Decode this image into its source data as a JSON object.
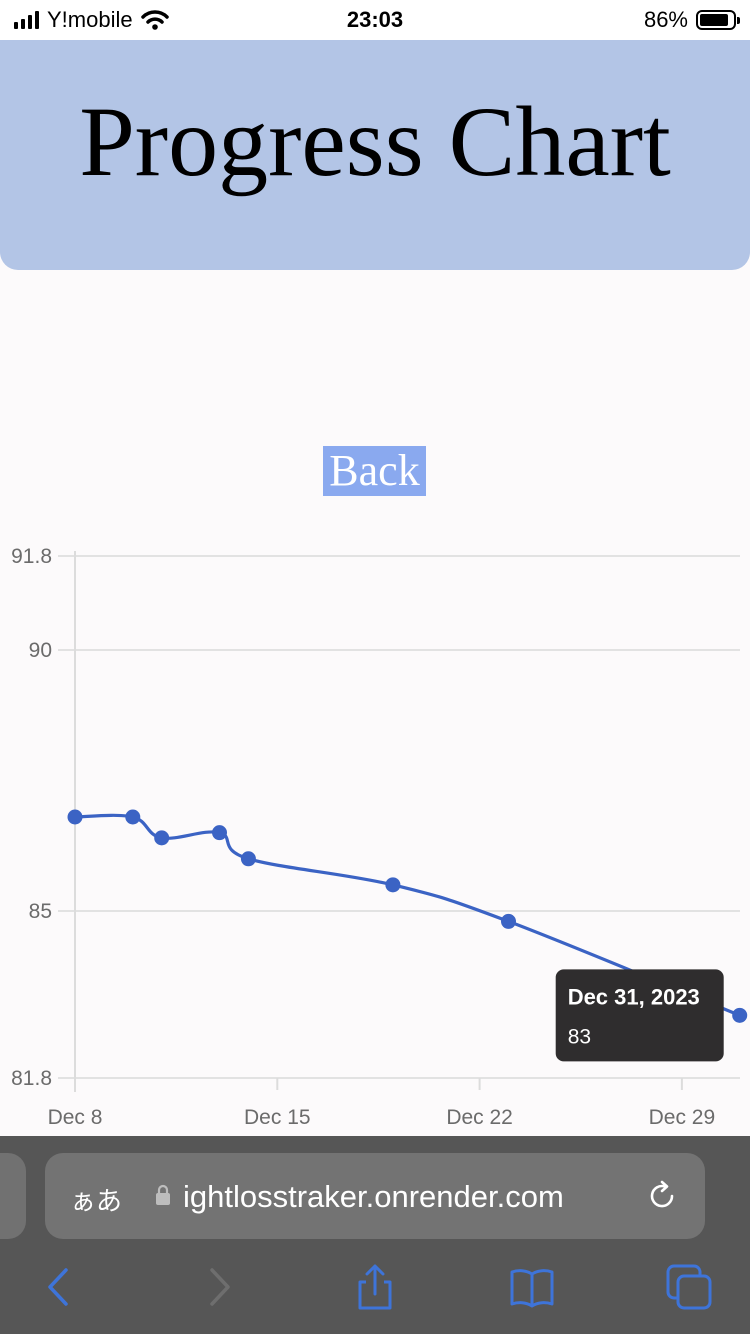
{
  "status_bar": {
    "carrier": "Y!mobile",
    "time": "23:03",
    "battery_percent": "86%",
    "battery_level": 0.86,
    "signal_icon": "signal-bars-icon",
    "wifi_icon": "wifi-icon"
  },
  "header": {
    "title": "Progress Chart"
  },
  "nav": {
    "back_label": "Back"
  },
  "chart_data": {
    "type": "line",
    "x": [
      "2023-12-08",
      "2023-12-10",
      "2023-12-11",
      "2023-12-13",
      "2023-12-14",
      "2023-12-19",
      "2023-12-23",
      "2023-12-31"
    ],
    "series": [
      {
        "values": [
          86.8,
          86.8,
          86.4,
          86.5,
          86.0,
          85.5,
          84.8,
          83.0
        ]
      }
    ],
    "y_ticks": [
      "91.8",
      "90",
      "85",
      "81.8"
    ],
    "x_ticks": [
      "Dec 8",
      "Dec 15",
      "Dec 22",
      "Dec 29"
    ],
    "ylim": [
      81.8,
      91.8
    ],
    "xlim": [
      "2023-12-08",
      "2023-12-31"
    ],
    "grid": true,
    "line_color": "#3b63c4",
    "tooltip": {
      "title": "Dec 31, 2023",
      "value": "83"
    }
  },
  "browser": {
    "aa_label": "ぁあ",
    "url": "ightlosstraker.onrender.com",
    "lock_icon": "lock-icon",
    "reload_icon": "reload-icon",
    "toolbar": [
      {
        "icon": "back-arrow-icon"
      },
      {
        "icon": "forward-arrow-icon"
      },
      {
        "icon": "share-icon"
      },
      {
        "icon": "bookmarks-icon"
      },
      {
        "icon": "tabs-icon"
      }
    ]
  }
}
